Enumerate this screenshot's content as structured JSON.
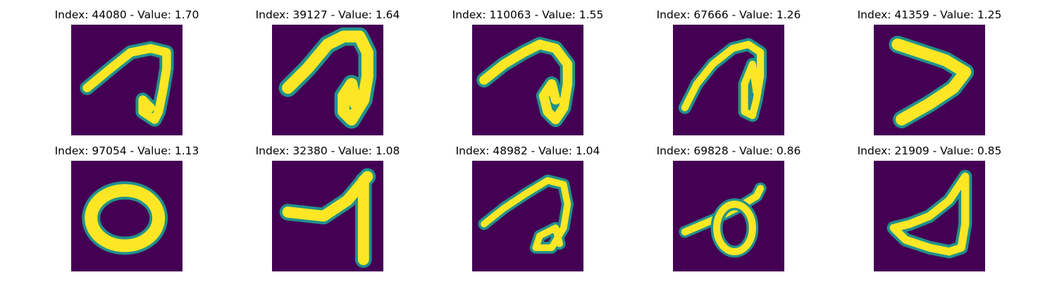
{
  "chart_data": [
    {
      "type": "image",
      "title": "Index: 44080 - Value: 1.70",
      "index": 44080,
      "value": 1.7,
      "depicts": "digit-like stroke resembling 'a'"
    },
    {
      "type": "image",
      "title": "Index: 39127 - Value: 1.64",
      "index": 39127,
      "value": 1.64,
      "depicts": "digit-like stroke resembling 'a'"
    },
    {
      "type": "image",
      "title": "Index: 110063 - Value: 1.55",
      "index": 110063,
      "value": 1.55,
      "depicts": "digit-like stroke resembling 'a'"
    },
    {
      "type": "image",
      "title": "Index: 67666 - Value: 1.26",
      "index": 67666,
      "value": 1.26,
      "depicts": "digit-like stroke resembling 'a'"
    },
    {
      "type": "image",
      "title": "Index: 41359 - Value: 1.25",
      "index": 41359,
      "value": 1.25,
      "depicts": "stroke resembling '>'"
    },
    {
      "type": "image",
      "title": "Index: 97054 - Value: 1.13",
      "index": 97054,
      "value": 1.13,
      "depicts": "digit 0"
    },
    {
      "type": "image",
      "title": "Index: 32380 - Value: 1.08",
      "index": 32380,
      "value": 1.08,
      "depicts": "digit 7 / 1"
    },
    {
      "type": "image",
      "title": "Index: 48982 - Value: 1.04",
      "index": 48982,
      "value": 1.04,
      "depicts": "digit-like stroke resembling 'a'"
    },
    {
      "type": "image",
      "title": "Index: 69828 - Value: 0.86",
      "index": 69828,
      "value": 0.86,
      "depicts": "loop with crossing line"
    },
    {
      "type": "image",
      "title": "Index: 21909 - Value: 0.85",
      "index": 21909,
      "value": 0.85,
      "depicts": "triangular loop"
    }
  ],
  "colors": {
    "background": "#440154",
    "mid": "#21918c",
    "stroke": "#fde725",
    "edge": "#5ec962"
  }
}
